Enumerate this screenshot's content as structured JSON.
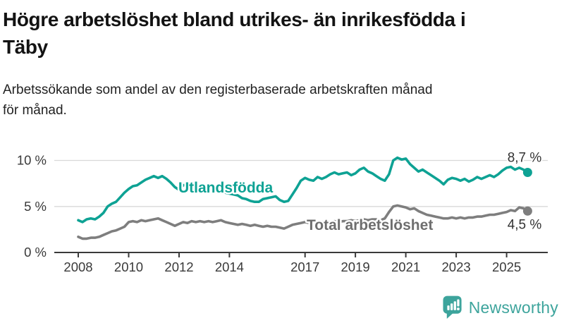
{
  "header": {
    "title": "Högre arbetslöshet bland utrikes- än inrikesfödda i\nTäby",
    "subtitle": "Arbetssökande som andel av den registerbaserade arbetskraften månad\nför månad."
  },
  "chart_data": {
    "type": "line",
    "title": "Högre arbetslöshet bland utrikes- än inrikesfödda i Täby",
    "xlabel": "",
    "ylabel": "Arbetssökande som andel av den registerbaserade arbetskraften (%)",
    "unit": "%",
    "grid": "horizontal-only",
    "legend_position": "inline-labels",
    "x_start": 2008.0,
    "x_step_years": 0.1666667,
    "x_end": 2025.83,
    "xticks": [
      2008,
      2010,
      2012,
      2014,
      2017,
      2019,
      2021,
      2023,
      2025
    ],
    "yticks": [
      {
        "value": 0,
        "label": "0 %"
      },
      {
        "value": 5,
        "label": "5 %"
      },
      {
        "value": 10,
        "label": "10 %"
      }
    ],
    "ylim": [
      0,
      10.8
    ],
    "series": [
      {
        "name": "Utlandsfödda",
        "color": "#0ea294",
        "label_color": "#0ea294",
        "end_label": "8,7 %",
        "end_value": 8.7,
        "values": [
          3.5,
          3.3,
          3.6,
          3.7,
          3.6,
          3.9,
          4.3,
          5.0,
          5.3,
          5.5,
          6.0,
          6.5,
          6.9,
          7.2,
          7.3,
          7.6,
          7.9,
          8.1,
          8.3,
          8.1,
          8.3,
          8.0,
          7.6,
          7.1,
          6.8,
          7.3,
          7.4,
          7.6,
          7.4,
          7.3,
          7.2,
          7.0,
          6.9,
          6.8,
          6.7,
          6.5,
          6.4,
          6.3,
          6.2,
          5.9,
          5.8,
          5.6,
          5.5,
          5.5,
          5.8,
          5.9,
          6.0,
          6.1,
          5.7,
          5.5,
          5.6,
          6.3,
          7.0,
          7.8,
          8.1,
          7.9,
          7.8,
          8.2,
          8.0,
          8.2,
          8.5,
          8.7,
          8.5,
          8.6,
          8.7,
          8.4,
          8.6,
          9.0,
          9.2,
          8.8,
          8.6,
          8.3,
          8.0,
          7.8,
          8.5,
          10.0,
          10.3,
          10.1,
          10.2,
          9.6,
          9.2,
          8.8,
          9.0,
          8.7,
          8.4,
          8.1,
          7.8,
          7.4,
          7.9,
          8.1,
          8.0,
          7.8,
          8.0,
          7.7,
          7.9,
          8.2,
          8.0,
          8.2,
          8.4,
          8.2,
          8.5,
          8.9,
          9.2,
          9.3,
          9.0,
          9.2,
          9.0,
          8.7
        ]
      },
      {
        "name": "Total arbetslöshet",
        "color": "#7e7e7e",
        "label_color": "#6e6e6e",
        "end_label": "4,5 %",
        "end_value": 4.5,
        "values": [
          1.7,
          1.5,
          1.5,
          1.6,
          1.6,
          1.7,
          1.9,
          2.1,
          2.3,
          2.4,
          2.6,
          2.8,
          3.3,
          3.4,
          3.3,
          3.5,
          3.4,
          3.5,
          3.6,
          3.7,
          3.5,
          3.3,
          3.1,
          2.9,
          3.1,
          3.3,
          3.2,
          3.4,
          3.3,
          3.4,
          3.3,
          3.4,
          3.3,
          3.4,
          3.5,
          3.3,
          3.2,
          3.1,
          3.0,
          3.1,
          3.0,
          2.9,
          3.0,
          2.9,
          2.8,
          2.9,
          2.8,
          2.8,
          2.7,
          2.6,
          2.8,
          3.0,
          3.1,
          3.2,
          3.3,
          3.2,
          3.3,
          3.2,
          3.3,
          3.4,
          3.3,
          3.4,
          3.3,
          3.4,
          3.4,
          3.5,
          3.4,
          3.5,
          3.6,
          3.5,
          3.6,
          3.6,
          3.5,
          3.7,
          4.4,
          5.0,
          5.1,
          5.0,
          4.9,
          4.7,
          4.8,
          4.5,
          4.3,
          4.1,
          4.0,
          3.9,
          3.8,
          3.7,
          3.7,
          3.8,
          3.7,
          3.8,
          3.7,
          3.8,
          3.8,
          3.9,
          3.9,
          4.0,
          4.1,
          4.1,
          4.2,
          4.3,
          4.4,
          4.6,
          4.5,
          4.9,
          4.8,
          4.5
        ]
      }
    ]
  },
  "footer": {
    "brand": "Newsworthy",
    "brand_color": "#3da49c",
    "logo_icon": "bar-chart-speech-bubble-icon"
  }
}
